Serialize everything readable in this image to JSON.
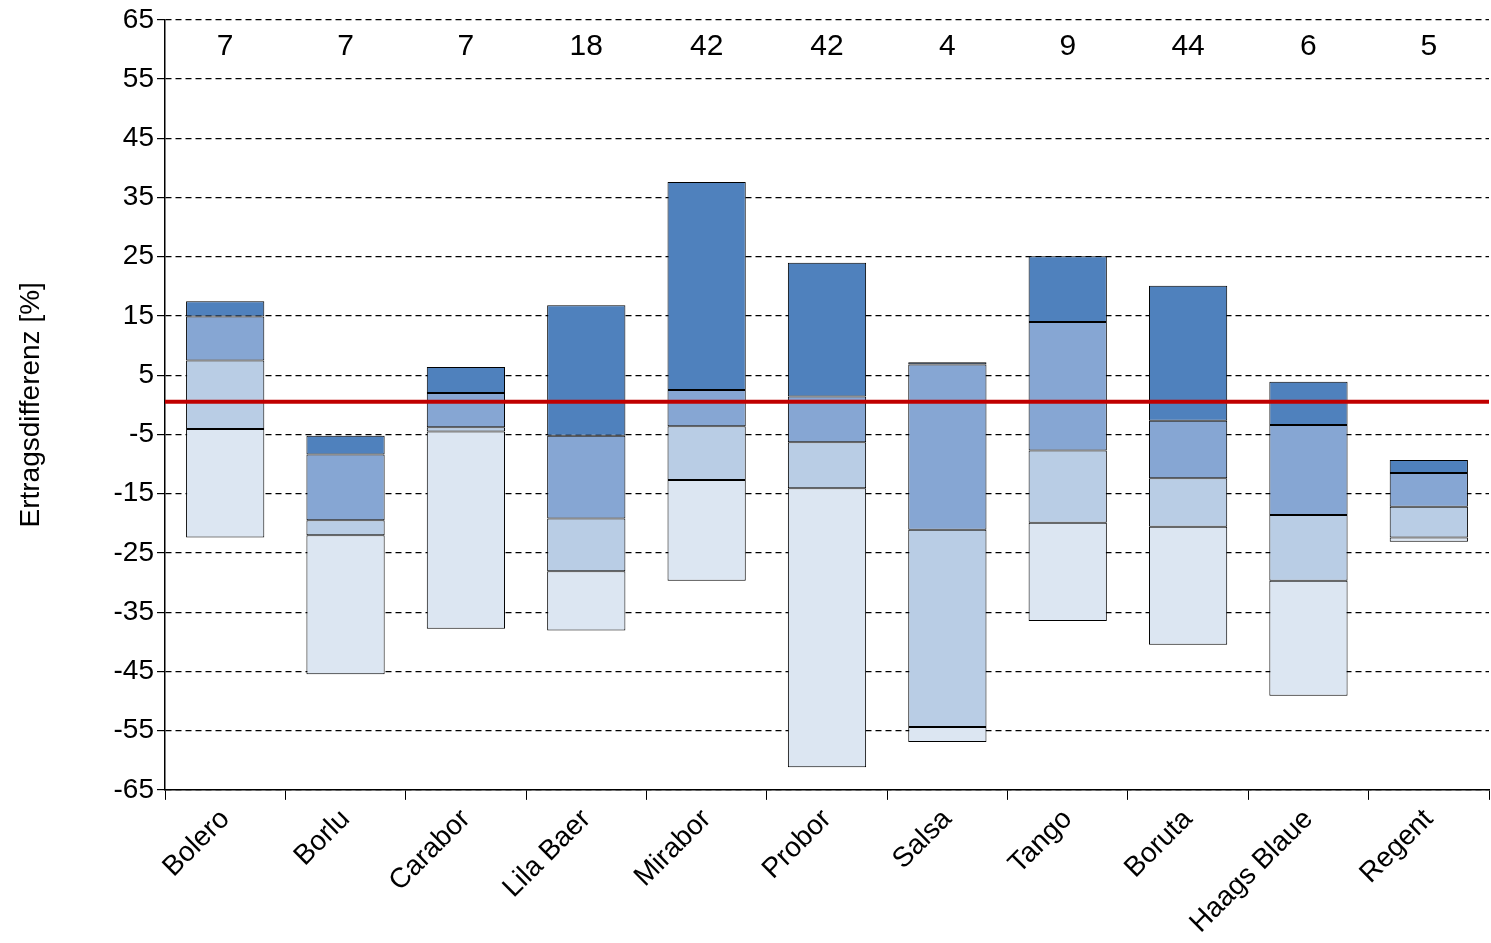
{
  "chart_data": {
    "type": "bar",
    "ylabel": "Ertragsdifferenz [%]",
    "categories": [
      "Bolero",
      "Borlu",
      "Carabor",
      "Lila Baer",
      "Mirabor",
      "Probor",
      "Salsa",
      "Tango",
      "Boruta",
      "Haags Blaue",
      "Regent"
    ],
    "series": [
      {
        "color": "#dce6f2",
        "base": [
          -22.4,
          -45.5,
          -37.8,
          -38.1,
          -29.7,
          -61.2,
          -56.9,
          -36.5,
          -40.5,
          -49.1,
          -23.1
        ],
        "values": [
          18.3,
          23.5,
          33.3,
          10.0,
          17.0,
          47.1,
          2.5,
          16.6,
          19.9,
          19.4,
          0.7
        ]
      },
      {
        "color": "#b9cde5",
        "base": [
          -4.1,
          -22.0,
          -4.5,
          -28.1,
          -12.7,
          -14.1,
          -54.4,
          -19.9,
          -20.6,
          -29.7,
          -22.4
        ],
        "values": [
          11.6,
          2.5,
          0.7,
          8.9,
          9.1,
          7.8,
          33.3,
          12.2,
          8.2,
          11.1,
          5.2
        ]
      },
      {
        "color": "#86a6d3",
        "base": [
          7.5,
          -19.5,
          -3.8,
          -19.2,
          -3.6,
          -6.3,
          -21.1,
          -7.7,
          -12.4,
          -18.6,
          -17.2
        ],
        "values": [
          7.4,
          11.1,
          5.8,
          14.0,
          6.1,
          7.7,
          27.9,
          21.7,
          9.7,
          15.2,
          5.7
        ]
      },
      {
        "color": "#4f81bd",
        "base": [
          14.9,
          -8.4,
          2.0,
          -5.2,
          2.5,
          1.4,
          6.8,
          14.0,
          -2.7,
          -3.4,
          -11.5
        ],
        "values": [
          2.6,
          3.2,
          4.4,
          22.0,
          35.1,
          22.6,
          0.4,
          11.1,
          22.8,
          7.3,
          2.2
        ]
      }
    ],
    "ylim": [
      -65,
      65
    ],
    "yticks": [
      -65,
      -55,
      -45,
      -35,
      -25,
      -15,
      -5,
      5,
      15,
      25,
      35,
      45,
      55,
      65
    ],
    "grid": "y",
    "legend": false,
    "ref_lines": [
      {
        "axis": "y",
        "value": 0.5,
        "color": "#c00000"
      }
    ],
    "annotations": [
      "7",
      "7",
      "7",
      "18",
      "42",
      "42",
      "4",
      "9",
      "44",
      "6",
      "5"
    ]
  }
}
